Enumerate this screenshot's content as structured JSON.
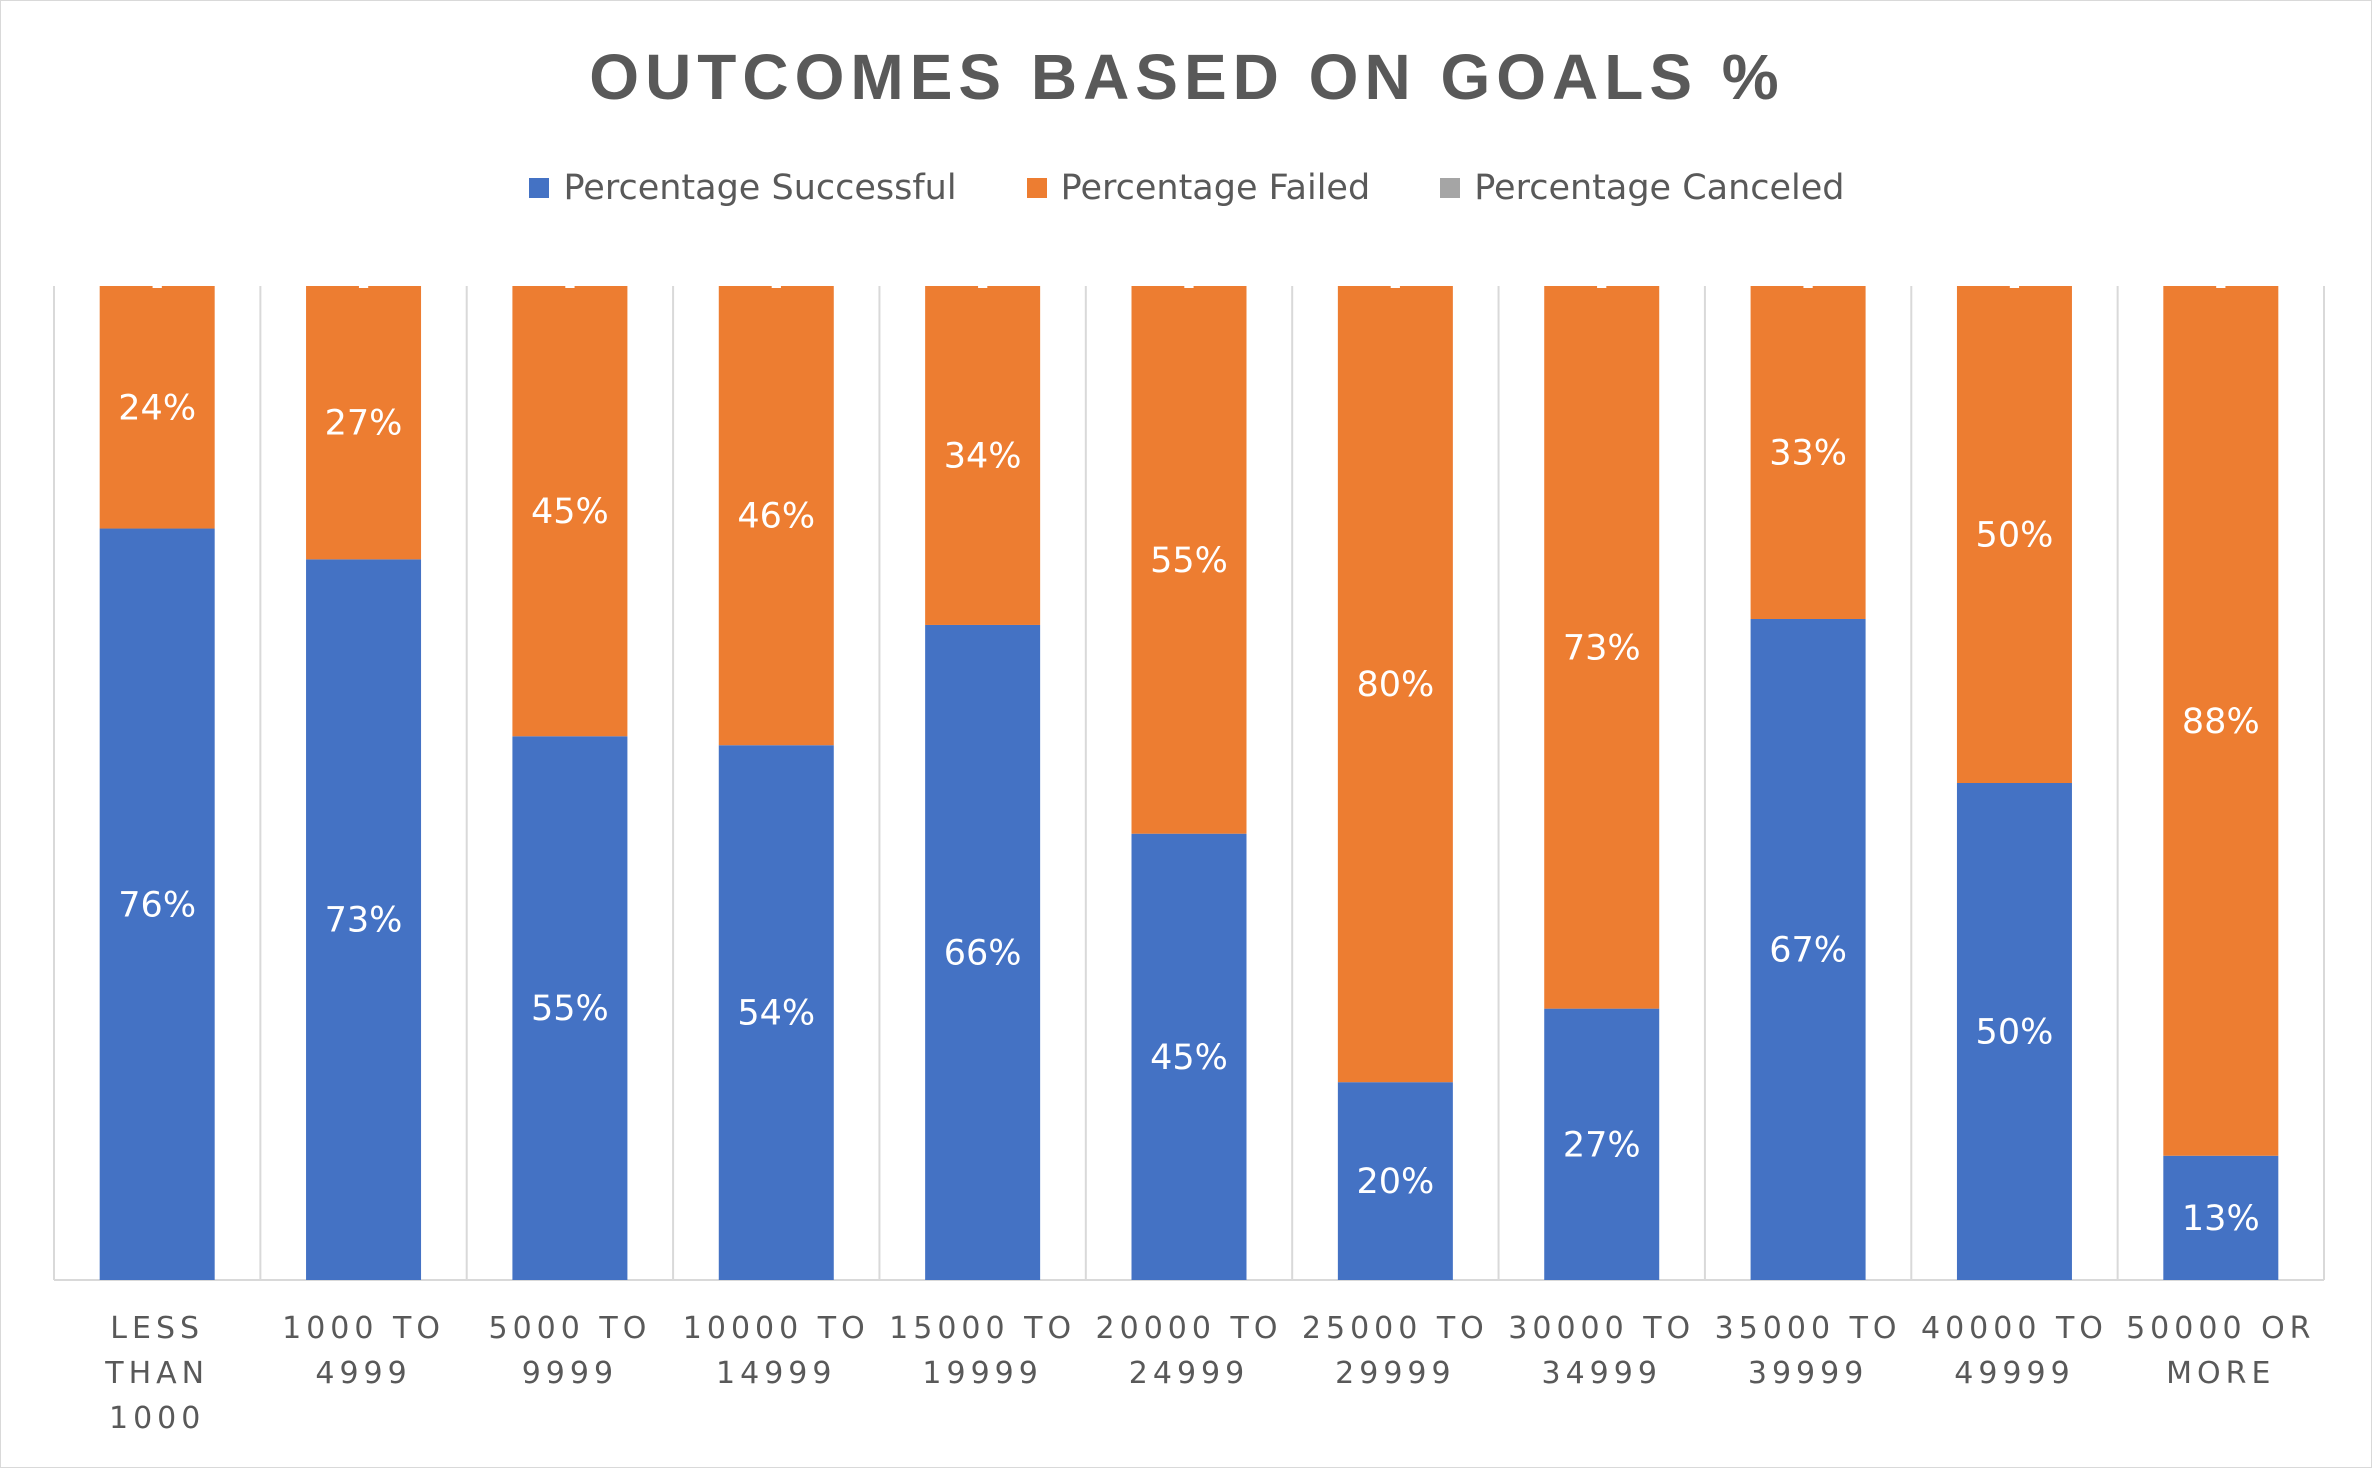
{
  "chart_data": {
    "type": "bar",
    "stacked": true,
    "title": "OUTCOMES BASED ON GOALS %",
    "legend_position": "top",
    "grid": false,
    "ylim": [
      0,
      1
    ],
    "categories": [
      [
        "LESS",
        "THAN",
        "1000"
      ],
      [
        "1000 TO",
        "4999"
      ],
      [
        "5000 TO",
        "9999"
      ],
      [
        "10000 TO",
        "14999"
      ],
      [
        "15000 TO",
        "19999"
      ],
      [
        "20000 TO",
        "24999"
      ],
      [
        "25000 TO",
        "29999"
      ],
      [
        "30000 TO",
        "34999"
      ],
      [
        "35000 TO",
        "39999"
      ],
      [
        "40000 TO",
        "49999"
      ],
      [
        "50000 OR",
        "MORE"
      ]
    ],
    "series": [
      {
        "name": "Percentage Successful",
        "color": "#4472c4",
        "label_color": "#ffffff",
        "values": [
          0.756,
          0.725,
          0.547,
          0.538,
          0.659,
          0.449,
          0.199,
          0.273,
          0.665,
          0.5,
          0.125
        ],
        "labels": [
          "76%",
          "73%",
          "55%",
          "54%",
          "66%",
          "45%",
          "20%",
          "27%",
          "67%",
          "50%",
          "13%"
        ]
      },
      {
        "name": "Percentage Failed",
        "color": "#ed7d31",
        "label_color": "#ffffff",
        "values": [
          0.244,
          0.275,
          0.453,
          0.462,
          0.341,
          0.551,
          0.801,
          0.727,
          0.335,
          0.5,
          0.875
        ],
        "labels": [
          "24%",
          "27%",
          "45%",
          "46%",
          "34%",
          "55%",
          "80%",
          "73%",
          "33%",
          "50%",
          "88%"
        ]
      },
      {
        "name": "Percentage Canceled",
        "color": "#a5a5a5",
        "label_color": "#ffffff",
        "values": [
          0,
          0,
          0,
          0,
          0,
          0,
          0,
          0,
          0,
          0,
          0
        ],
        "labels": [
          "-",
          "-",
          "-",
          "-",
          "-",
          "-",
          "-",
          "-",
          "-",
          "-",
          "-"
        ]
      }
    ]
  }
}
